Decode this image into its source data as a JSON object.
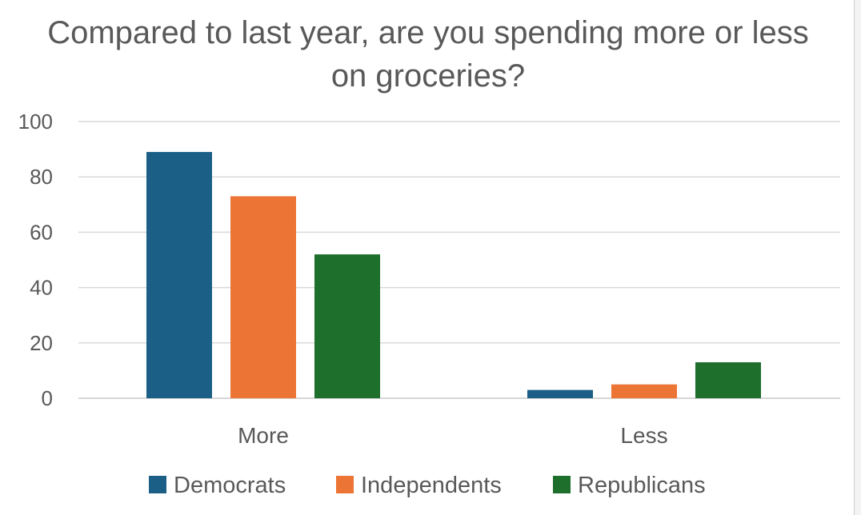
{
  "chart_data": {
    "type": "bar",
    "title": "Compared to last year, are you spending more or less on groceries?",
    "categories": [
      "More",
      "Less"
    ],
    "series": [
      {
        "name": "Democrats",
        "color": "#1b5f87",
        "values": [
          89,
          3
        ]
      },
      {
        "name": "Independents",
        "color": "#ec7434",
        "values": [
          73,
          5
        ]
      },
      {
        "name": "Republicans",
        "color": "#1e6e2c",
        "values": [
          52,
          13
        ]
      }
    ],
    "ylim": [
      0,
      100
    ],
    "yticks": [
      0,
      20,
      40,
      60,
      80,
      100
    ],
    "grid": true,
    "legend": "bottom",
    "xlabel": "",
    "ylabel": ""
  }
}
